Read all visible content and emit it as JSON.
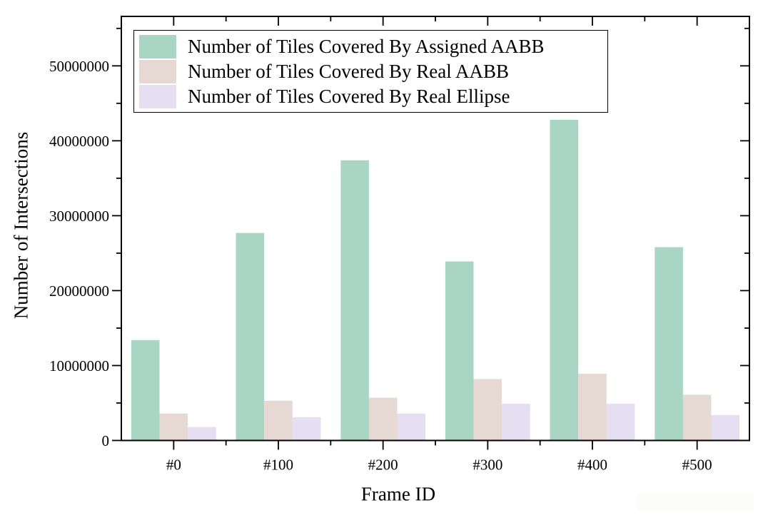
{
  "figure": {
    "background": "#ffffff",
    "axis_color": "#000000",
    "watermark_patch_color": "#fbfbf8"
  },
  "chart_data": {
    "type": "bar",
    "title": "",
    "xlabel": "Frame ID",
    "ylabel": "Number of Intersections",
    "categories": [
      "#0",
      "#100",
      "#200",
      "#300",
      "#400",
      "#500"
    ],
    "series": [
      {
        "name": "Number of Tiles Covered By Assigned AABB",
        "color": "#a9d5c4",
        "values": [
          13400000,
          27700000,
          37400000,
          23900000,
          42800000,
          25800000
        ]
      },
      {
        "name": "Number of Tiles Covered By Real AABB",
        "color": "#e6d9d4",
        "values": [
          3600000,
          5300000,
          5700000,
          8200000,
          8900000,
          6100000
        ]
      },
      {
        "name": "Number of Tiles Covered By Real Ellipse",
        "color": "#e5dff1",
        "values": [
          1800000,
          3100000,
          3600000,
          4900000,
          4900000,
          3400000
        ]
      }
    ],
    "ylim": [
      0,
      56600000
    ],
    "y_major_step": 10000000,
    "y_minor_step": 5000000,
    "y_tick_labels": [
      "0",
      "10000000",
      "20000000",
      "30000000",
      "40000000",
      "50000000"
    ],
    "legend_position": "top-left",
    "grid": false
  }
}
